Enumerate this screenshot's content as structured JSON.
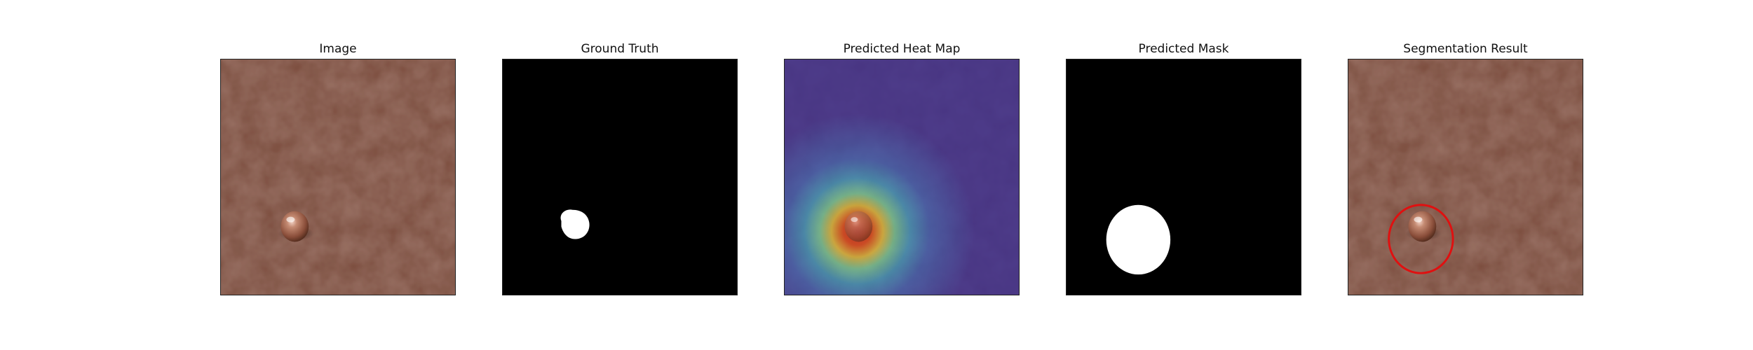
{
  "figure": {
    "panels": [
      {
        "id": "image",
        "title": "Image"
      },
      {
        "id": "ground-truth",
        "title": "Ground Truth"
      },
      {
        "id": "heatmap",
        "title": "Predicted Heat Map"
      },
      {
        "id": "pred-mask",
        "title": "Predicted Mask"
      },
      {
        "id": "seg-result",
        "title": "Segmentation Result"
      }
    ],
    "colors": {
      "leather": "#7a4a3a",
      "leather_dark": "#5e372b",
      "mask_bg": "#000000",
      "mask_fg": "#ffffff",
      "heat_low": "#3b2f8f",
      "heat_high": "#c8281a",
      "circle": "#e01010"
    }
  }
}
